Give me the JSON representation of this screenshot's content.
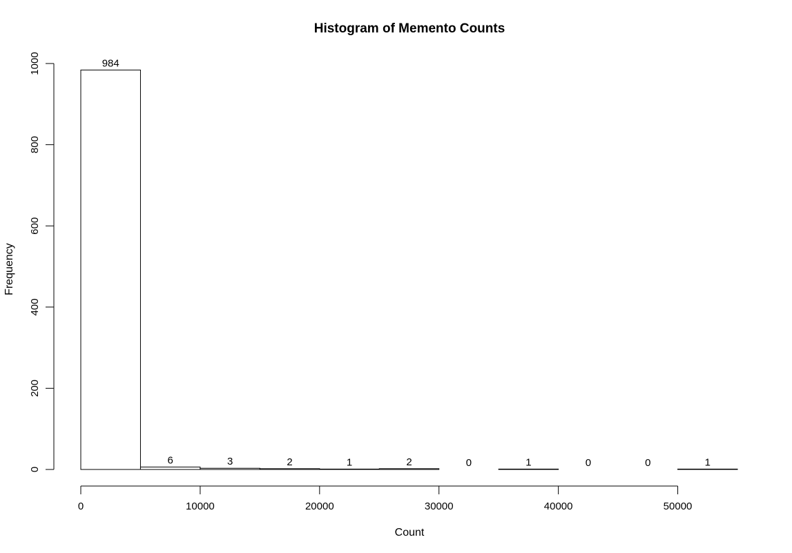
{
  "chart_data": {
    "type": "bar",
    "title": "Histogram of Memento Counts",
    "xlabel": "Count",
    "ylabel": "Frequency",
    "bins": [
      {
        "start": 0,
        "end": 5000,
        "count": 984
      },
      {
        "start": 5000,
        "end": 10000,
        "count": 6
      },
      {
        "start": 10000,
        "end": 15000,
        "count": 3
      },
      {
        "start": 15000,
        "end": 20000,
        "count": 2
      },
      {
        "start": 20000,
        "end": 25000,
        "count": 1
      },
      {
        "start": 25000,
        "end": 30000,
        "count": 2
      },
      {
        "start": 30000,
        "end": 35000,
        "count": 0
      },
      {
        "start": 35000,
        "end": 40000,
        "count": 1
      },
      {
        "start": 40000,
        "end": 45000,
        "count": 0
      },
      {
        "start": 45000,
        "end": 50000,
        "count": 0
      },
      {
        "start": 50000,
        "end": 55000,
        "count": 1
      }
    ],
    "xlim": [
      0,
      55000
    ],
    "ylim": [
      0,
      1000
    ],
    "xticks": [
      "0",
      "10000",
      "20000",
      "30000",
      "40000",
      "50000"
    ],
    "yticks": [
      "0",
      "200",
      "400",
      "600",
      "800",
      "1000"
    ],
    "bar_fill": "#ffffff",
    "bar_stroke": "#000000",
    "grid": false,
    "legend": "none"
  }
}
